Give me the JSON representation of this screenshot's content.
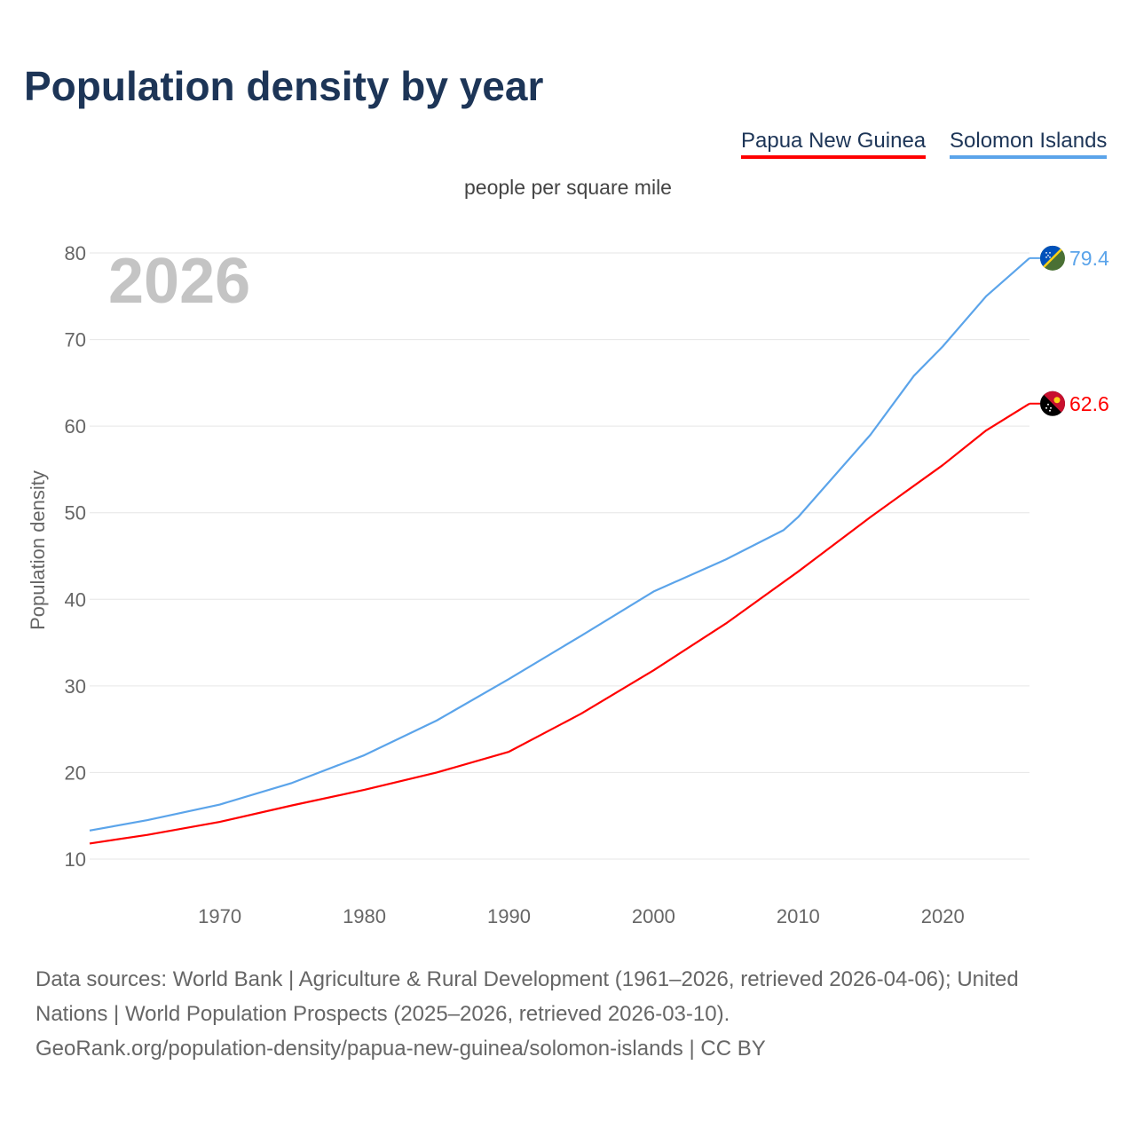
{
  "title": "Population density by year",
  "unit_label": "people per square mile",
  "year_watermark": "2026",
  "source_lines": [
    "Data sources: World Bank | Agriculture & Rural Development (1961–2026, retrieved 2026-04-06); United",
    "Nations | World Population Prospects (2025–2026, retrieved 2026-03-10).",
    "GeoRank.org/population-density/papua-new-guinea/solomon-islands | CC BY"
  ],
  "chart_data": {
    "type": "line",
    "title": "Population density by year",
    "xlabel": "",
    "ylabel": "Population density",
    "xlim": [
      1961,
      2026
    ],
    "ylim": [
      10,
      80
    ],
    "xticks": [
      1970,
      1980,
      1990,
      2000,
      2010,
      2020
    ],
    "yticks": [
      10,
      20,
      30,
      40,
      50,
      60,
      70,
      80
    ],
    "grid": true,
    "legend_placement": "top-right",
    "series": [
      {
        "name": "Papua New Guinea",
        "color": "#ff0000",
        "end_label": "62.6",
        "flag": "papua-new-guinea-flag",
        "x": [
          1961,
          1965,
          1970,
          1975,
          1980,
          1985,
          1990,
          1995,
          2000,
          2005,
          2010,
          2015,
          2020,
          2023,
          2026
        ],
        "y": [
          11.8,
          12.8,
          14.3,
          16.2,
          18.0,
          20.0,
          22.4,
          26.8,
          31.8,
          37.2,
          43.2,
          49.5,
          55.5,
          59.5,
          62.6
        ]
      },
      {
        "name": "Solomon Islands",
        "color": "#5ba4ea",
        "end_label": "79.4",
        "flag": "solomon-islands-flag",
        "x": [
          1961,
          1965,
          1970,
          1975,
          1980,
          1985,
          1990,
          1995,
          2000,
          2005,
          2009,
          2010,
          2015,
          2018,
          2020,
          2023,
          2026
        ],
        "y": [
          13.3,
          14.5,
          16.3,
          18.8,
          22.0,
          26.0,
          30.8,
          35.8,
          40.9,
          44.6,
          48.0,
          49.5,
          59.0,
          65.8,
          69.2,
          75.0,
          79.4
        ]
      }
    ]
  }
}
